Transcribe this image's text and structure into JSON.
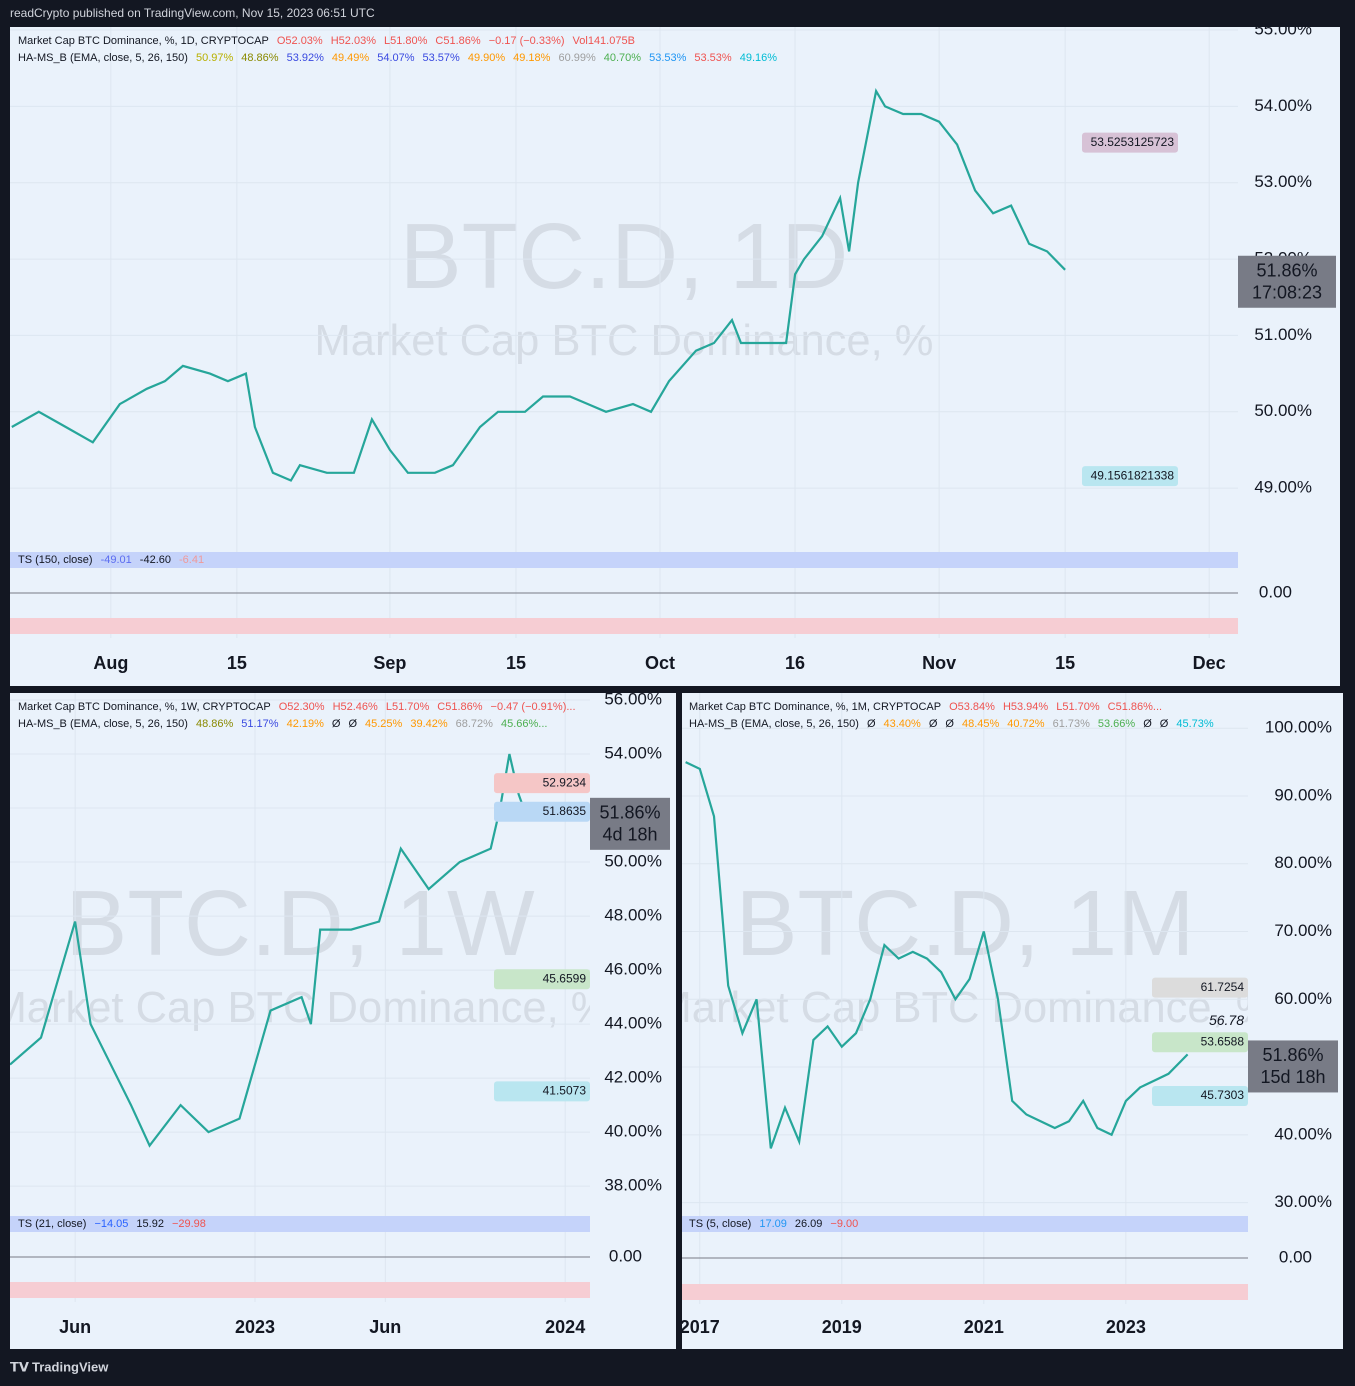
{
  "header": {
    "publisher": "readCrypto published on TradingView.com, Nov 15, 2023 06:51 UTC"
  },
  "footer": {
    "brand": "TradingView"
  },
  "chart_data": [
    {
      "type": "line",
      "watermark": "BTC.D, 1D",
      "watermark_sub": "Market Cap BTC Dominance, %",
      "legend_title": "Market Cap BTC Dominance, %, 1D, CRYPTOCAP",
      "ohlc": [
        "O52.03%",
        "H52.03%",
        "L51.80%",
        "C51.86%",
        "−0.17 (−0.33%)",
        "Vol141.075B"
      ],
      "indicator": "HA-MS_B (EMA, close, 5, 26, 150)",
      "indicator_values": [
        {
          "label": "50.97%",
          "color": "#b8b000"
        },
        {
          "label": "48.86%",
          "color": "#8a8a00"
        },
        {
          "label": "53.92%",
          "color": "#3949e0"
        },
        {
          "label": "49.49%",
          "color": "#ff9800"
        },
        {
          "label": "54.07%",
          "color": "#3949e0"
        },
        {
          "label": "53.57%",
          "color": "#3949e0"
        },
        {
          "label": "49.90%",
          "color": "#ff9800"
        },
        {
          "label": "49.18%",
          "color": "#ff9800"
        },
        {
          "label": "60.99%",
          "color": "#9e9e9e"
        },
        {
          "label": "40.70%",
          "color": "#4caf50"
        },
        {
          "label": "53.53%",
          "color": "#2196f3"
        },
        {
          "label": "53.53%",
          "color": "#ef5350"
        },
        {
          "label": "49.16%",
          "color": "#00bcd4"
        }
      ],
      "x": [
        202,
        205,
        208,
        211,
        214,
        217,
        219,
        221,
        224,
        226,
        228,
        229,
        231,
        233,
        234,
        237,
        240,
        242,
        244,
        246,
        249,
        251,
        254,
        256,
        259,
        261,
        264,
        266,
        268,
        271,
        273,
        275,
        278,
        280,
        282,
        283,
        286,
        288,
        289,
        290,
        292,
        294,
        295,
        296,
        298,
        299,
        301,
        303,
        305,
        307,
        309,
        311,
        313,
        315,
        317,
        319
      ],
      "values": [
        49.8,
        50.0,
        49.8,
        49.6,
        50.1,
        50.3,
        50.4,
        50.6,
        50.5,
        50.4,
        50.5,
        49.8,
        49.2,
        49.1,
        49.3,
        49.2,
        49.2,
        49.9,
        49.5,
        49.2,
        49.2,
        49.3,
        49.8,
        50.0,
        50.0,
        50.2,
        50.2,
        50.1,
        50.0,
        50.1,
        50.0,
        50.4,
        50.8,
        50.9,
        51.2,
        50.9,
        50.9,
        50.9,
        51.8,
        52.0,
        52.3,
        52.8,
        52.1,
        53.0,
        54.2,
        54.0,
        53.9,
        53.9,
        53.8,
        53.5,
        52.9,
        52.6,
        52.7,
        52.2,
        52.1,
        51.86
      ],
      "color": "#26a69a",
      "xlim": [
        201.8,
        338.2
      ],
      "xticks": [
        {
          "value": 213,
          "label": "Aug"
        },
        {
          "value": 227,
          "label": "15"
        },
        {
          "value": 244,
          "label": "Sep"
        },
        {
          "value": 258,
          "label": "15"
        },
        {
          "value": 274,
          "label": "Oct"
        },
        {
          "value": 289,
          "label": "16"
        },
        {
          "value": 305,
          "label": "Nov"
        },
        {
          "value": 319,
          "label": "15"
        },
        {
          "value": 335,
          "label": "Dec"
        }
      ],
      "ylim": [
        48.32,
        55.04
      ],
      "yticks": [
        {
          "value": 49,
          "label": "49.00%"
        },
        {
          "value": 50,
          "label": "50.00%"
        },
        {
          "value": 51,
          "label": "51.00%"
        },
        {
          "value": 52,
          "label": "52.00%"
        },
        {
          "value": 53,
          "label": "53.00%"
        },
        {
          "value": 54,
          "label": "54.00%"
        },
        {
          "value": 55,
          "label": "55.00%"
        }
      ],
      "price_labels": [
        {
          "value": 53.5253125723,
          "color": "#d7c2d6"
        },
        {
          "value": 49.1561821338,
          "color": "#b9e6f0"
        }
      ],
      "current": {
        "value": 51.86,
        "label": "51.86%",
        "countdown": "17:08:23"
      },
      "oscillator": {
        "name": "TS (150, close)",
        "values": [
          {
            "label": "-49.01",
            "color": "#5b6cf0"
          },
          {
            "label": "-42.60",
            "color": "#131722"
          },
          {
            "label": "-6.41",
            "color": "#ef9a9a"
          }
        ],
        "ylim": [
          -60,
          60
        ],
        "yticks": [
          {
            "value": 0,
            "label": "0.00"
          }
        ]
      }
    },
    {
      "type": "line",
      "watermark": "BTC.D, 1W",
      "watermark_sub": "Market Cap BTC Dominance, %",
      "legend_title": "Market Cap BTC Dominance, %, 1W, CRYPTOCAP",
      "ohlc": [
        "O52.30%",
        "H52.46%",
        "L51.70%",
        "C51.86%",
        "−0.47 (−0.91%)..."
      ],
      "indicator": "HA-MS_B (EMA, close, 5, 26, 150)",
      "indicator_values": [
        {
          "label": "48.86%",
          "color": "#8a8a00"
        },
        {
          "label": "51.17%",
          "color": "#3949e0"
        },
        {
          "label": "42.19%",
          "color": "#ff9800"
        },
        {
          "label": "Ø",
          "color": "#131722"
        },
        {
          "label": "Ø",
          "color": "#131722"
        },
        {
          "label": "45.25%",
          "color": "#ff9800"
        },
        {
          "label": "39.42%",
          "color": "#ff9800"
        },
        {
          "label": "68.72%",
          "color": "#9e9e9e"
        },
        {
          "label": "45.66%...",
          "color": "#4caf50"
        }
      ],
      "x": [
        2022.21,
        2022.31,
        2022.42,
        2022.47,
        2022.6,
        2022.66,
        2022.76,
        2022.85,
        2022.95,
        2023.0,
        2023.05,
        2023.15,
        2023.18,
        2023.21,
        2023.31,
        2023.4,
        2023.47,
        2023.56,
        2023.66,
        2023.76,
        2023.79,
        2023.82,
        2023.85,
        2023.87
      ],
      "values": [
        42.5,
        43.5,
        47.8,
        44,
        41,
        39.5,
        41,
        40,
        40.5,
        42.5,
        44.5,
        45,
        44,
        47.5,
        47.5,
        47.8,
        50.5,
        49,
        50,
        50.5,
        52,
        54,
        52.5,
        51.86
      ],
      "color": "#26a69a",
      "xlim": [
        2022.21,
        2024.08
      ],
      "xticks": [
        {
          "value": 2022.42,
          "label": "Jun"
        },
        {
          "value": 2023,
          "label": "2023"
        },
        {
          "value": 2023.42,
          "label": "Jun"
        },
        {
          "value": 2024,
          "label": "2024"
        }
      ],
      "ylim": [
        37.19,
        56.26
      ],
      "yticks": [
        {
          "value": 38,
          "label": "38.00%"
        },
        {
          "value": 40,
          "label": "40.00%"
        },
        {
          "value": 42,
          "label": "42.00%"
        },
        {
          "value": 44,
          "label": "44.00%"
        },
        {
          "value": 46,
          "label": "46.00%"
        },
        {
          "value": 48,
          "label": "48.00%"
        },
        {
          "value": 50,
          "label": "50.00%"
        },
        {
          "value": 52,
          "label": "52.00%"
        },
        {
          "value": 54,
          "label": "54.00%"
        },
        {
          "value": 56,
          "label": "56.00%"
        }
      ],
      "price_labels": [
        {
          "value": 52.9234,
          "color": "#f5c6c6"
        },
        {
          "value": 51.8635,
          "color": "#b9d8f5"
        },
        {
          "value": 45.6599,
          "color": "#c8e6c9"
        },
        {
          "value": 41.5073,
          "color": "#b9e6f0"
        }
      ],
      "current": {
        "value": 51.86,
        "label": "51.86%",
        "countdown": "4d 18h"
      },
      "oscillator": {
        "name": "TS (21, close)",
        "values": [
          {
            "label": "−14.05",
            "color": "#2962ff"
          },
          {
            "label": "15.92",
            "color": "#131722"
          },
          {
            "label": "−29.98",
            "color": "#ef5350"
          }
        ],
        "ylim": [
          -60,
          60
        ],
        "yticks": [
          {
            "value": 0,
            "label": "0.00"
          }
        ]
      }
    },
    {
      "type": "line",
      "watermark": "BTC.D, 1M",
      "watermark_sub": "Market Cap BTC Dominance, %",
      "legend_title": "Market Cap BTC Dominance, %, 1M, CRYPTOCAP",
      "ohlc": [
        "O53.84%",
        "H53.94%",
        "L51.70%",
        "C51.86%..."
      ],
      "indicator": "HA-MS_B (EMA, close, 5, 26, 150)",
      "indicator_values": [
        {
          "label": "Ø",
          "color": "#131722"
        },
        {
          "label": "43.40%",
          "color": "#ff9800"
        },
        {
          "label": "Ø",
          "color": "#131722"
        },
        {
          "label": "Ø",
          "color": "#131722"
        },
        {
          "label": "48.45%",
          "color": "#ff9800"
        },
        {
          "label": "40.72%",
          "color": "#ff9800"
        },
        {
          "label": "61.73%",
          "color": "#9e9e9e"
        },
        {
          "label": "53.66%",
          "color": "#4caf50"
        },
        {
          "label": "Ø",
          "color": "#131722"
        },
        {
          "label": "Ø",
          "color": "#131722"
        },
        {
          "label": "45.73%",
          "color": "#00bcd4"
        }
      ],
      "x": [
        2016.8,
        2017.0,
        2017.2,
        2017.4,
        2017.6,
        2017.8,
        2018.0,
        2018.2,
        2018.4,
        2018.6,
        2018.8,
        2019.0,
        2019.2,
        2019.4,
        2019.6,
        2019.8,
        2020.0,
        2020.2,
        2020.4,
        2020.6,
        2020.8,
        2021.0,
        2021.2,
        2021.4,
        2021.6,
        2021.8,
        2022.0,
        2022.2,
        2022.4,
        2022.6,
        2022.8,
        2023.0,
        2023.2,
        2023.4,
        2023.6,
        2023.87
      ],
      "values": [
        95,
        94,
        87,
        62,
        55,
        60,
        38,
        44,
        39,
        54,
        56,
        53,
        55,
        60,
        68,
        66,
        67,
        66,
        64,
        60,
        63,
        70,
        60,
        45,
        43,
        42,
        41,
        42,
        45,
        41,
        40,
        45,
        47,
        48,
        49,
        51.86
      ],
      "color": "#26a69a",
      "xlim": [
        2016.75,
        2024.72
      ],
      "xticks": [
        {
          "value": 2017,
          "label": "2017"
        },
        {
          "value": 2019,
          "label": "2019"
        },
        {
          "value": 2021,
          "label": "2021"
        },
        {
          "value": 2023,
          "label": "2023"
        }
      ],
      "ylim": [
        29.2,
        105.2
      ],
      "yticks": [
        {
          "value": 30,
          "label": "30.00%"
        },
        {
          "value": 40,
          "label": "40.00%"
        },
        {
          "value": 50,
          "label": "50.00%"
        },
        {
          "value": 60,
          "label": "60.00%"
        },
        {
          "value": 70,
          "label": "70.00%"
        },
        {
          "value": 80,
          "label": "80.00%"
        },
        {
          "value": 90,
          "label": "90.00%"
        },
        {
          "value": 100,
          "label": "100.00%"
        }
      ],
      "price_labels": [
        {
          "value": 61.7254,
          "color": "#dcdcdc"
        },
        {
          "value": 56.78,
          "color": "none"
        },
        {
          "value": 53.6588,
          "color": "#c8e6c9"
        },
        {
          "value": 45.7303,
          "color": "#b9e6f0"
        }
      ],
      "current": {
        "value": 51.86,
        "label": "51.86%",
        "countdown": "15d 18h"
      },
      "oscillator": {
        "name": "TS (5, close)",
        "values": [
          {
            "label": "17.09",
            "color": "#2196f3"
          },
          {
            "label": "26.09",
            "color": "#131722"
          },
          {
            "label": "−9.00",
            "color": "#ef5350"
          }
        ],
        "ylim": [
          -60,
          60
        ],
        "yticks": [
          {
            "value": 0,
            "label": "0.00"
          }
        ]
      }
    }
  ]
}
